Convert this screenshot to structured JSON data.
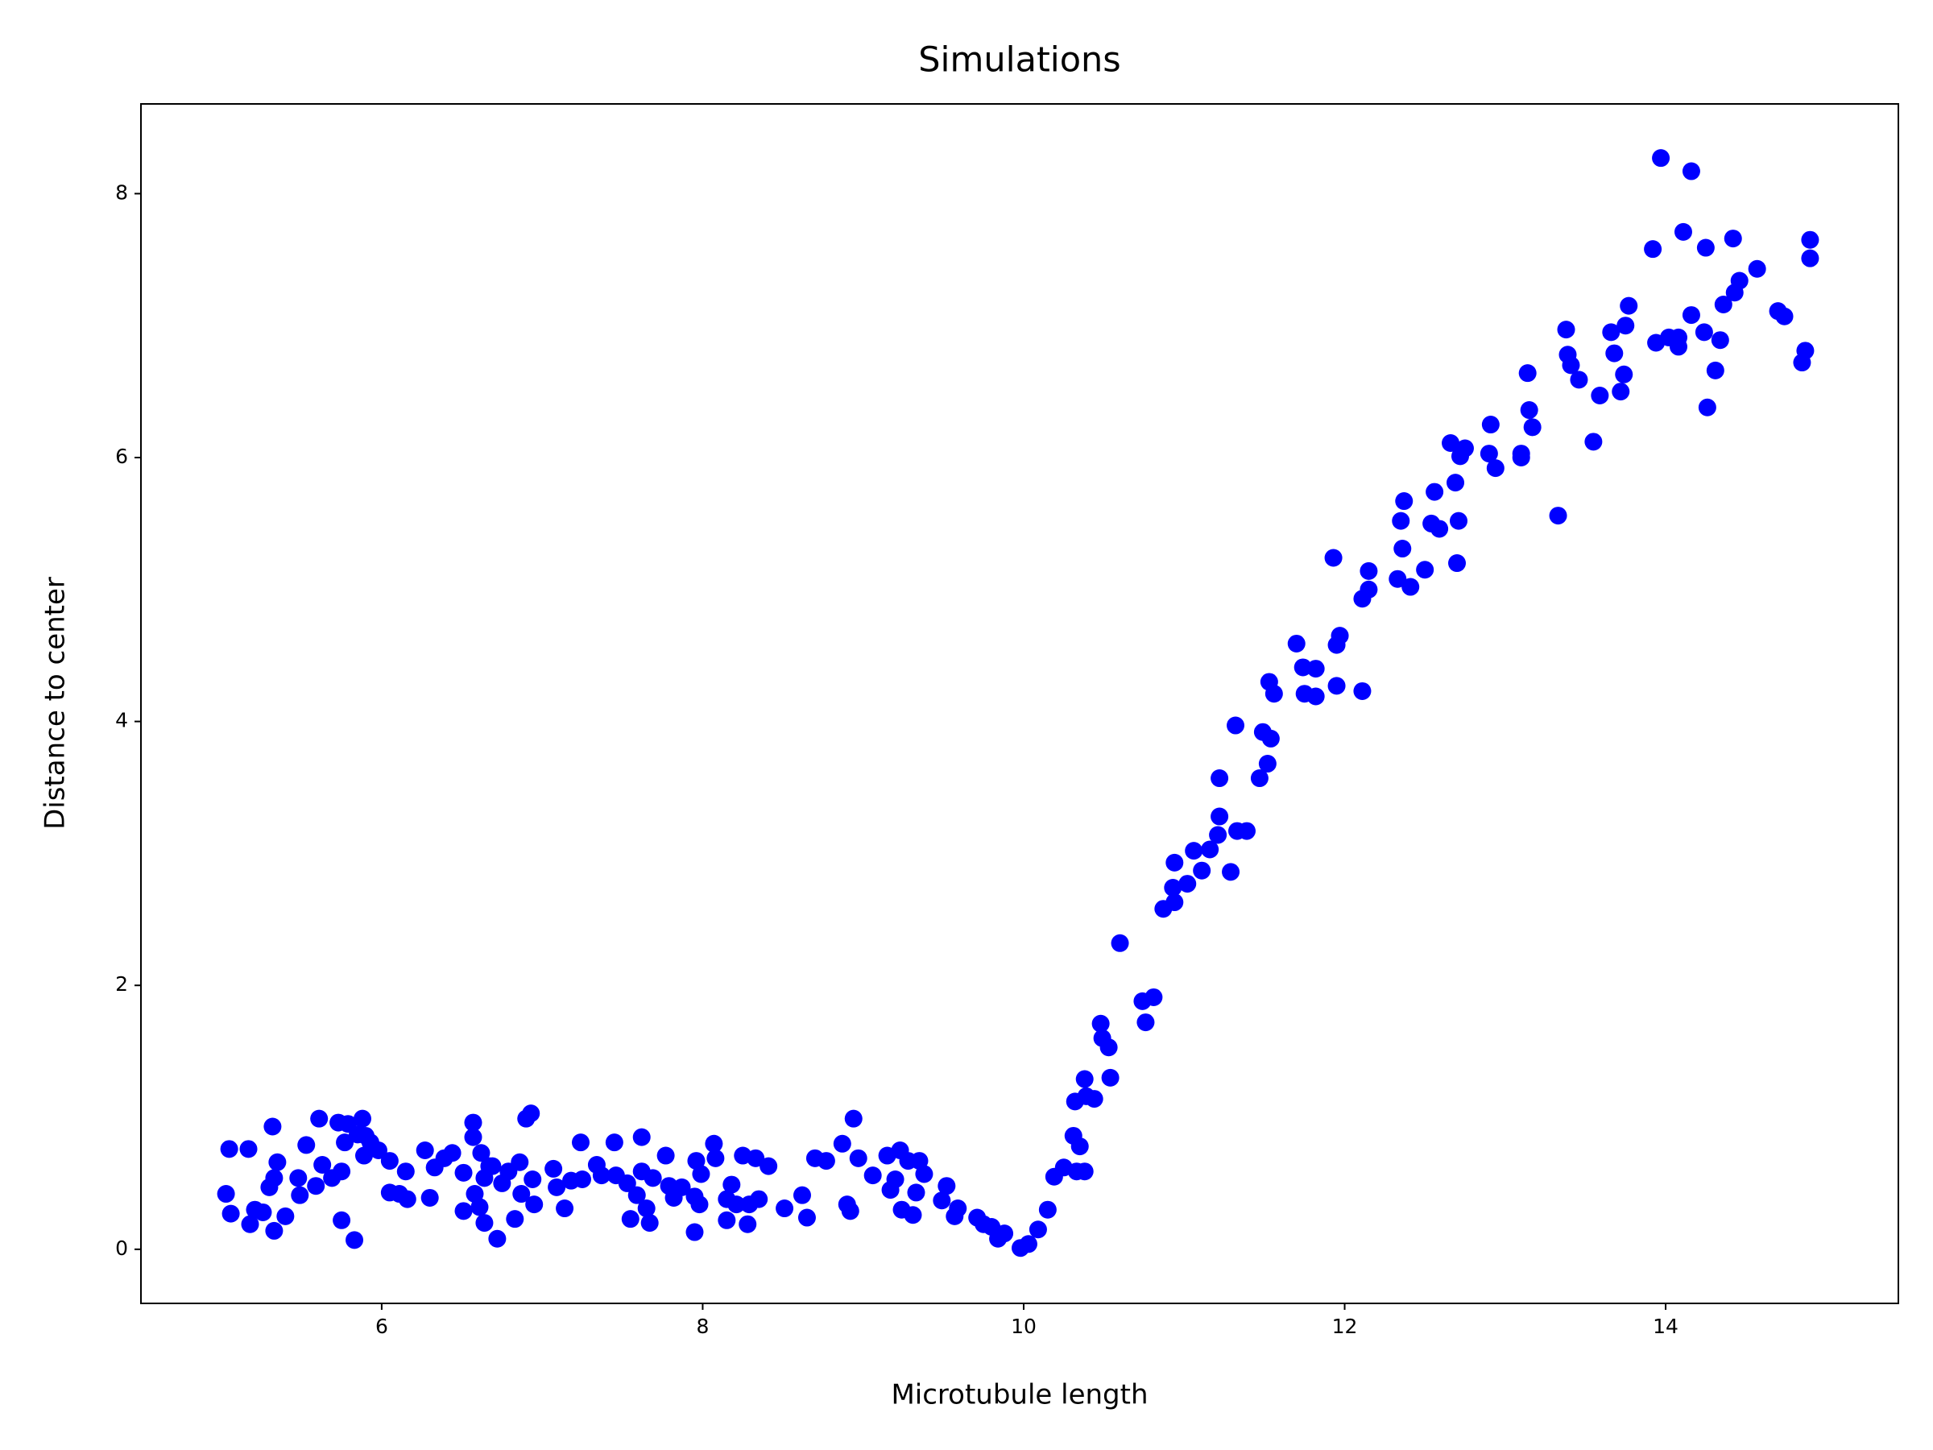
{
  "chart_data": {
    "type": "scatter",
    "title": "Simulations",
    "x_label": "Microtubule length",
    "y_label": "Distance to center",
    "color": "#0000ff",
    "xlim": [
      4.5,
      15.45
    ],
    "ylim": [
      -0.41,
      8.68
    ],
    "xticks": [
      6,
      8,
      10,
      12,
      14
    ],
    "yticks": [
      0,
      2,
      4,
      6,
      8
    ],
    "x": [
      5.03,
      5.05,
      5.06,
      5.17,
      5.18,
      5.21,
      5.26,
      5.3,
      5.32,
      5.33,
      5.35,
      5.33,
      5.4,
      5.48,
      5.49,
      5.53,
      5.59,
      5.61,
      5.63,
      5.69,
      5.73,
      5.75,
      5.75,
      5.77,
      5.79,
      5.83,
      5.85,
      5.88,
      5.89,
      5.9,
      5.93,
      5.98,
      6.05,
      6.05,
      6.11,
      6.15,
      6.16,
      6.27,
      6.3,
      6.33,
      6.39,
      6.44,
      6.51,
      6.51,
      6.57,
      6.57,
      6.58,
      6.61,
      6.62,
      6.64,
      6.64,
      6.67,
      6.69,
      6.72,
      6.75,
      6.79,
      6.83,
      6.86,
      6.87,
      6.9,
      6.93,
      6.94,
      6.95,
      7.07,
      7.09,
      7.14,
      7.18,
      7.24,
      7.25,
      7.34,
      7.37,
      7.45,
      7.46,
      7.53,
      7.55,
      7.59,
      7.62,
      7.62,
      7.65,
      7.67,
      7.69,
      7.77,
      7.79,
      7.82,
      7.87,
      7.95,
      7.95,
      7.96,
      7.98,
      7.99,
      8.07,
      8.08,
      8.15,
      8.15,
      8.18,
      8.21,
      8.25,
      8.28,
      8.29,
      8.33,
      8.35,
      8.41,
      8.51,
      8.62,
      8.65,
      8.7,
      8.77,
      8.87,
      8.9,
      8.92,
      8.94,
      8.97,
      9.06,
      9.15,
      9.17,
      9.2,
      9.23,
      9.24,
      9.28,
      9.31,
      9.33,
      9.35,
      9.38,
      9.49,
      9.52,
      9.57,
      9.59,
      9.71,
      9.75,
      9.8,
      9.84,
      9.88,
      9.98,
      10.03,
      10.09,
      10.15,
      10.19,
      10.25,
      10.31,
      10.32,
      10.33,
      10.35,
      10.38,
      10.38,
      10.39,
      10.44,
      10.48,
      10.49,
      10.53,
      10.54,
      10.6,
      10.74,
      10.76,
      10.81,
      10.87,
      10.93,
      10.94,
      10.94,
      11.02,
      11.06,
      11.11,
      11.16,
      11.21,
      11.22,
      11.22,
      11.29,
      11.32,
      11.33,
      11.39,
      11.47,
      11.49,
      11.52,
      11.53,
      11.54,
      11.56,
      11.7,
      11.74,
      11.75,
      11.82,
      11.82,
      11.93,
      11.95,
      11.95,
      11.97,
      12.11,
      12.11,
      12.15,
      12.15,
      12.33,
      12.35,
      12.36,
      12.37,
      12.41,
      12.5,
      12.54,
      12.56,
      12.59,
      12.66,
      12.69,
      12.7,
      12.71,
      12.72,
      12.75,
      12.9,
      12.91,
      12.94,
      13.1,
      13.1,
      13.14,
      13.15,
      13.17,
      13.33,
      13.38,
      13.39,
      13.41,
      13.46,
      13.55,
      13.59,
      13.66,
      13.68,
      13.72,
      13.74,
      13.75,
      13.77,
      13.92,
      13.94,
      13.97,
      14.02,
      14.08,
      14.08,
      14.11,
      14.16,
      14.16,
      14.24,
      14.25,
      14.26,
      14.31,
      14.34,
      14.36,
      14.42,
      14.43,
      14.46,
      14.57,
      14.7,
      14.74,
      14.85,
      14.87,
      14.9,
      14.9
    ],
    "values": [
      0.42,
      0.76,
      0.27,
      0.76,
      0.19,
      0.3,
      0.28,
      0.47,
      0.93,
      0.14,
      0.66,
      0.54,
      0.25,
      0.54,
      0.41,
      0.79,
      0.48,
      0.99,
      0.64,
      0.54,
      0.96,
      0.22,
      0.59,
      0.81,
      0.95,
      0.07,
      0.87,
      0.99,
      0.71,
      0.86,
      0.81,
      0.75,
      0.67,
      0.43,
      0.42,
      0.59,
      0.38,
      0.75,
      0.39,
      0.62,
      0.69,
      0.73,
      0.29,
      0.58,
      0.96,
      0.85,
      0.42,
      0.32,
      0.73,
      0.2,
      0.54,
      0.63,
      0.63,
      0.08,
      0.5,
      0.59,
      0.23,
      0.66,
      0.42,
      0.99,
      1.03,
      0.53,
      0.34,
      0.61,
      0.47,
      0.31,
      0.52,
      0.81,
      0.53,
      0.64,
      0.56,
      0.81,
      0.56,
      0.5,
      0.23,
      0.41,
      0.85,
      0.59,
      0.31,
      0.2,
      0.54,
      0.71,
      0.48,
      0.39,
      0.47,
      0.13,
      0.4,
      0.67,
      0.34,
      0.57,
      0.8,
      0.69,
      0.22,
      0.38,
      0.49,
      0.34,
      0.71,
      0.19,
      0.34,
      0.69,
      0.38,
      0.63,
      0.31,
      0.41,
      0.24,
      0.69,
      0.67,
      0.8,
      0.34,
      0.29,
      0.99,
      0.69,
      0.56,
      0.71,
      0.45,
      0.53,
      0.75,
      0.3,
      0.67,
      0.26,
      0.43,
      0.67,
      0.57,
      0.37,
      0.48,
      0.25,
      0.31,
      0.24,
      0.19,
      0.17,
      0.08,
      0.12,
      0.01,
      0.04,
      0.15,
      0.3,
      0.55,
      0.62,
      0.86,
      1.12,
      0.59,
      0.78,
      1.29,
      0.59,
      1.16,
      1.14,
      1.71,
      1.6,
      1.53,
      1.3,
      2.32,
      1.88,
      1.72,
      1.91,
      2.58,
      2.74,
      2.93,
      2.63,
      2.77,
      3.02,
      2.87,
      3.03,
      3.14,
      3.57,
      3.28,
      2.86,
      3.97,
      3.17,
      3.17,
      3.57,
      3.92,
      3.68,
      4.3,
      3.87,
      4.21,
      4.59,
      4.41,
      4.21,
      4.4,
      4.19,
      5.24,
      4.27,
      4.58,
      4.65,
      4.23,
      4.93,
      5.0,
      5.14,
      5.08,
      5.52,
      5.31,
      5.67,
      5.02,
      5.15,
      5.5,
      5.74,
      5.46,
      6.11,
      5.81,
      5.2,
      5.52,
      6.01,
      6.07,
      6.03,
      6.25,
      5.92,
      6.0,
      6.03,
      6.64,
      6.36,
      6.23,
      5.56,
      6.97,
      6.78,
      6.7,
      6.59,
      6.12,
      6.47,
      6.95,
      6.79,
      6.5,
      6.63,
      7.0,
      7.15,
      7.58,
      6.87,
      8.27,
      6.91,
      6.91,
      6.84,
      7.71,
      8.17,
      7.08,
      6.95,
      7.59,
      6.38,
      6.66,
      6.89,
      7.16,
      7.66,
      7.25,
      7.34,
      7.43,
      7.11,
      7.07,
      6.72,
      6.81,
      7.65,
      7.51
    ]
  }
}
